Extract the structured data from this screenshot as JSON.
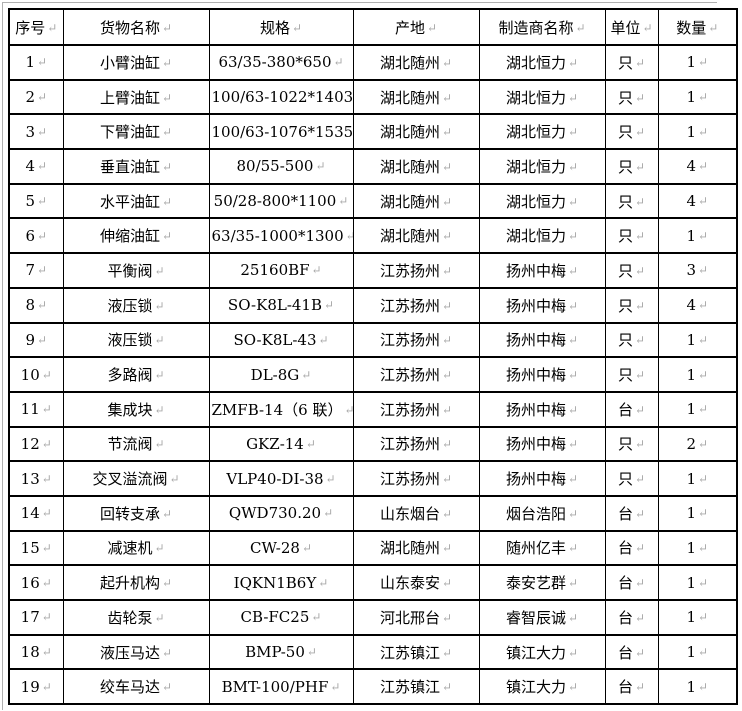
{
  "colors": {
    "border": "#000000",
    "mark": "#a9a9a9",
    "boundary_line": "#b0b0b0",
    "background": "#ffffff"
  },
  "paragraph_mark": "↵",
  "table": {
    "columns": [
      "序号",
      "货物名称",
      "规格",
      "产地",
      "制造商名称",
      "单位",
      "数量"
    ],
    "column_keys": [
      "index",
      "name",
      "spec",
      "origin",
      "manufacturer",
      "unit",
      "qty"
    ],
    "rows": [
      [
        "1",
        "小臂油缸",
        "63/35-380*650",
        "湖北随州",
        "湖北恒力",
        "只",
        "1"
      ],
      [
        "2",
        "上臂油缸",
        "100/63-1022*1403",
        "湖北随州",
        "湖北恒力",
        "只",
        "1"
      ],
      [
        "3",
        "下臂油缸",
        "100/63-1076*1535",
        "湖北随州",
        "湖北恒力",
        "只",
        "1"
      ],
      [
        "4",
        "垂直油缸",
        "80/55-500",
        "湖北随州",
        "湖北恒力",
        "只",
        "4"
      ],
      [
        "5",
        "水平油缸",
        "50/28-800*1100",
        "湖北随州",
        "湖北恒力",
        "只",
        "4"
      ],
      [
        "6",
        "伸缩油缸",
        "63/35-1000*1300",
        "湖北随州",
        "湖北恒力",
        "只",
        "1"
      ],
      [
        "7",
        "平衡阀",
        "25160BF",
        "江苏扬州",
        "扬州中梅",
        "只",
        "3"
      ],
      [
        "8",
        "液压锁",
        "SO-K8L-41B",
        "江苏扬州",
        "扬州中梅",
        "只",
        "4"
      ],
      [
        "9",
        "液压锁",
        "SO-K8L-43",
        "江苏扬州",
        "扬州中梅",
        "只",
        "1"
      ],
      [
        "10",
        "多路阀",
        "DL-8G",
        "江苏扬州",
        "扬州中梅",
        "只",
        "1"
      ],
      [
        "11",
        "集成块",
        "ZMFB-14（6 联）",
        "江苏扬州",
        "扬州中梅",
        "台",
        "1"
      ],
      [
        "12",
        "节流阀",
        "GKZ-14",
        "江苏扬州",
        "扬州中梅",
        "只",
        "2"
      ],
      [
        "13",
        "交叉溢流阀",
        "VLP40-DI-38",
        "江苏扬州",
        "扬州中梅",
        "只",
        "1"
      ],
      [
        "14",
        "回转支承",
        "QWD730.20",
        "山东烟台",
        "烟台浩阳",
        "台",
        "1"
      ],
      [
        "15",
        "减速机",
        "CW-28",
        "湖北随州",
        "随州亿丰",
        "台",
        "1"
      ],
      [
        "16",
        "起升机构",
        "IQKN1B6Y",
        "山东泰安",
        "泰安艺群",
        "台",
        "1"
      ],
      [
        "17",
        "齿轮泵",
        "CB-FC25",
        "河北邢台",
        "睿智辰诚",
        "台",
        "1"
      ],
      [
        "18",
        "液压马达",
        "BMP-50",
        "江苏镇江",
        "镇江大力",
        "台",
        "1"
      ],
      [
        "19",
        "绞车马达",
        "BMT-100/PHF",
        "江苏镇江",
        "镇江大力",
        "台",
        "1"
      ]
    ]
  }
}
